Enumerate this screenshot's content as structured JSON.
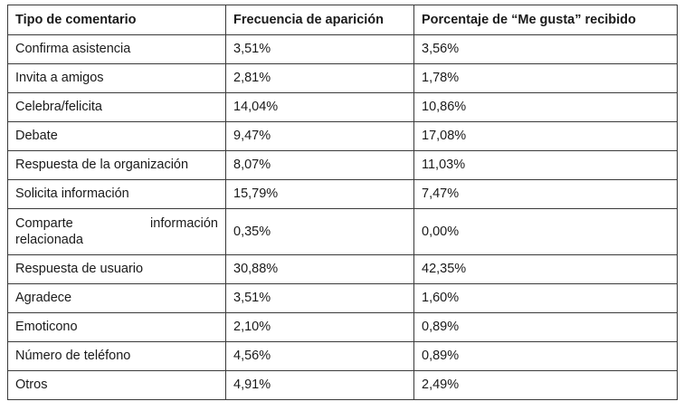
{
  "table": {
    "headers": [
      "Tipo de comentario",
      "Frecuencia de aparición",
      "Porcentaje de “Me gusta” recibido"
    ],
    "rows": [
      [
        "Confirma asistencia",
        "3,51%",
        "3,56%"
      ],
      [
        "Invita a amigos",
        "2,81%",
        "1,78%"
      ],
      [
        "Celebra/felicita",
        "14,04%",
        "10,86%"
      ],
      [
        "Debate",
        "9,47%",
        "17,08%"
      ],
      [
        "Respuesta de la organización",
        "8,07%",
        "11,03%"
      ],
      [
        "Solicita información",
        "15,79%",
        "7,47%"
      ],
      [
        "Comparte información relacionada",
        "0,35%",
        "0,00%"
      ],
      [
        "Respuesta de usuario",
        "30,88%",
        "42,35%"
      ],
      [
        "Agradece",
        "3,51%",
        "1,60%"
      ],
      [
        "Emoticono",
        "2,10%",
        "0,89%"
      ],
      [
        "Número de teléfono",
        "4,56%",
        "0,89%"
      ],
      [
        "Otros",
        "4,91%",
        "2,49%"
      ]
    ],
    "wrapped_cell_lines": [
      "Comparte",
      "información",
      "relacionada"
    ]
  }
}
